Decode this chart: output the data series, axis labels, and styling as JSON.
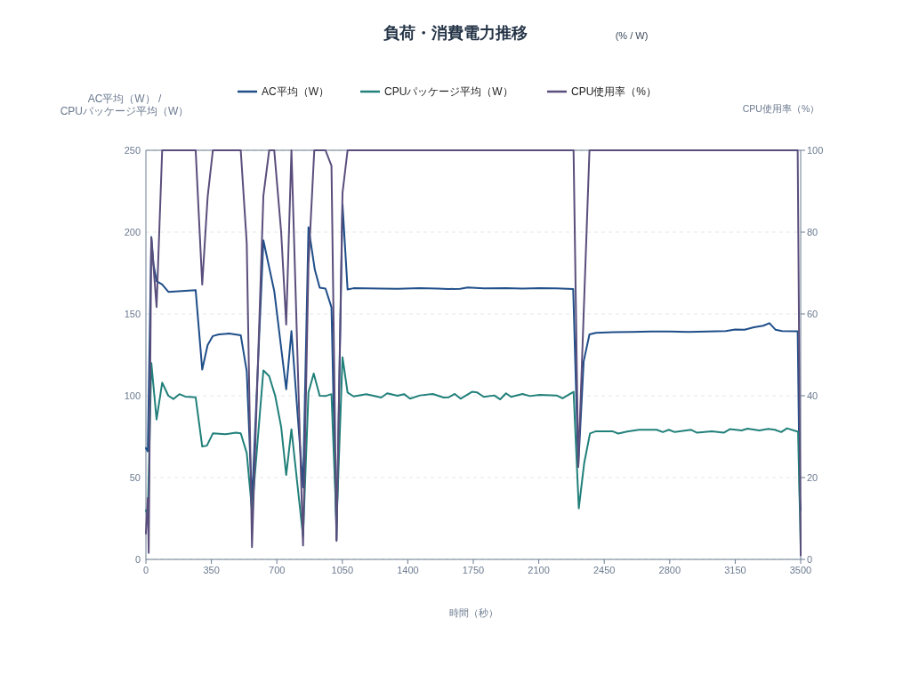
{
  "chart_data": {
    "type": "line",
    "title": "負荷・消費電力推移",
    "subtitle": "(% / W)",
    "xlabel": "時間（秒）",
    "ylabel": "AC平均（W） / CPUパッケージ平均（W）",
    "y2label": "CPU使用率（%）",
    "xlim": [
      0,
      3500
    ],
    "xticks": [
      0,
      350,
      700,
      1050,
      1400,
      1750,
      2100,
      2450,
      2800,
      3150,
      3500
    ],
    "ylim": [
      0,
      250
    ],
    "yticks": [
      0,
      50,
      100,
      150,
      200,
      250
    ],
    "y2lim": [
      0,
      100
    ],
    "y2ticks": [
      0,
      20,
      40,
      60,
      80,
      100
    ],
    "grid": "y",
    "legend": "top",
    "series": [
      {
        "name": "AC平均（W）",
        "color": "#1f4e89",
        "x": [
          0,
          10,
          29,
          41,
          57,
          87,
          120,
          266,
          301,
          330,
          358,
          390,
          444,
          507,
          539,
          567,
          628,
          686,
          750,
          778,
          840,
          869,
          903,
          929,
          960,
          992,
          1019,
          1051,
          1078,
          1110,
          1258,
          1345,
          1465,
          1560,
          1619,
          1680,
          1720,
          1806,
          1925,
          2013,
          2105,
          2195,
          2284,
          2311,
          2340,
          2371,
          2406,
          2500,
          2600,
          2700,
          2800,
          2900,
          3000,
          3100,
          3150,
          3200,
          3250,
          3300,
          3333,
          3365,
          3400,
          3484,
          3495,
          3500
        ],
        "values": [
          68,
          66,
          197,
          180,
          170,
          168,
          163.5,
          164.5,
          116,
          131,
          136.5,
          137.5,
          138,
          137,
          115,
          35,
          195,
          164,
          104,
          139.5,
          44,
          203,
          177,
          166,
          165.5,
          154,
          12,
          217,
          165,
          165.7,
          165.5,
          165.3,
          165.7,
          165.5,
          165.2,
          165.4,
          166.2,
          165.6,
          165.7,
          165.5,
          165.8,
          165.6,
          165.2,
          56.5,
          121,
          137.5,
          138.5,
          138.8,
          139,
          139.3,
          139.2,
          139,
          139.3,
          139.5,
          140.5,
          140.4,
          141.8,
          142.8,
          144.4,
          140.4,
          139.5,
          139.4,
          38,
          30
        ]
      },
      {
        "name": "CPUパッケージ平均（W）",
        "color": "#21807a",
        "x": [
          0,
          10,
          29,
          57,
          87,
          120,
          147,
          179,
          210,
          266,
          301,
          326,
          358,
          425,
          481,
          507,
          539,
          567,
          628,
          659,
          691,
          723,
          750,
          778,
          840,
          869,
          897,
          929,
          960,
          992,
          1019,
          1051,
          1078,
          1110,
          1178,
          1258,
          1290,
          1345,
          1380,
          1412,
          1465,
          1533,
          1592,
          1619,
          1651,
          1682,
          1743,
          1771,
          1806,
          1862,
          1894,
          1925,
          1952,
          2013,
          2053,
          2105,
          2195,
          2227,
          2286,
          2314,
          2343,
          2374,
          2406,
          2493,
          2525,
          2572,
          2636,
          2731,
          2763,
          2795,
          2827,
          2915,
          2946,
          3025,
          3089,
          3121,
          3184,
          3216,
          3279,
          3327,
          3362,
          3396,
          3427,
          3486,
          3495,
          3500
        ],
        "values": [
          30,
          27,
          120,
          85.5,
          108,
          100,
          98,
          101,
          99.5,
          99,
          69,
          69.5,
          77,
          76.5,
          77.5,
          77,
          65,
          30,
          115.5,
          112,
          100,
          81,
          51.6,
          79.5,
          14,
          102,
          113.6,
          100,
          99.8,
          101,
          21,
          123.5,
          102,
          99.6,
          101,
          98.9,
          101.5,
          100,
          101,
          98.2,
          100.2,
          101.1,
          98.9,
          99.1,
          101.1,
          98.2,
          102.4,
          102,
          99.3,
          100.2,
          97.8,
          101.5,
          99.3,
          101.1,
          99.8,
          100.6,
          100.2,
          98.4,
          102.4,
          31.2,
          59,
          77,
          78.3,
          78.3,
          76.9,
          78.1,
          79.2,
          79.2,
          77.8,
          79.2,
          77.8,
          79.2,
          77.4,
          78.3,
          77.4,
          79.6,
          78.8,
          79.9,
          78.8,
          79.7,
          79.2,
          77.8,
          80.1,
          78,
          33,
          8
        ]
      },
      {
        "name": "CPU使用率（%）",
        "color": "#5a4e7c",
        "axis": "y2",
        "x": [
          0,
          10,
          15,
          29,
          57,
          87,
          266,
          301,
          330,
          358,
          507,
          539,
          567,
          628,
          659,
          686,
          723,
          750,
          778,
          840,
          869,
          900,
          960,
          992,
          1019,
          1051,
          1078,
          2286,
          2311,
          2340,
          2371,
          3484,
          3500
        ],
        "values": [
          6.3,
          15,
          1.6,
          78.6,
          61.7,
          100,
          100,
          67.2,
          88.6,
          100,
          100,
          77.3,
          3,
          88.9,
          100,
          100,
          80,
          57.4,
          100,
          3.4,
          72,
          100,
          100,
          96.2,
          4.5,
          89.6,
          100,
          100,
          22.6,
          60,
          100,
          100,
          1
        ]
      }
    ]
  }
}
